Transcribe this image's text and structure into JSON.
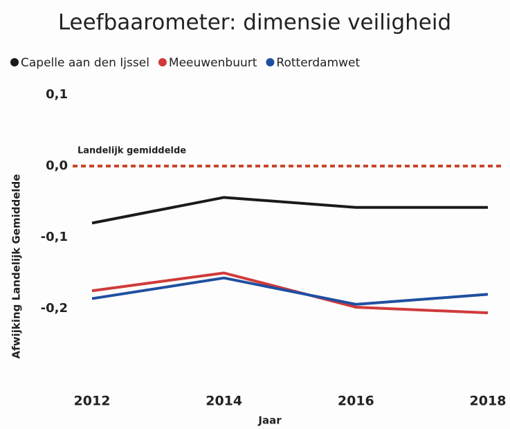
{
  "chart_data": {
    "type": "line",
    "title": "Leefbaarometer: dimensie veiligheid",
    "x_label": "Jaar",
    "y_label": "Afwijking Landelijk Gemiddelde",
    "x": [
      2012,
      2014,
      2016,
      2018
    ],
    "xlim": [
      2012,
      2018
    ],
    "xticks": [
      2012,
      2014,
      2016,
      2018
    ],
    "ylim": [
      -0.3,
      0.1
    ],
    "yticks": [
      {
        "value": 0.1,
        "label": "0,1"
      },
      {
        "value": 0,
        "label": "0,0"
      },
      {
        "value": -0.1,
        "label": "-0,1"
      },
      {
        "value": -0.2,
        "label": "-0,2"
      }
    ],
    "grid": false,
    "legend": "top-left",
    "reference_line": {
      "value": 0,
      "label": "Landelijk gemiddelde",
      "color": "#c8452c"
    },
    "series": [
      {
        "name": "Capelle aan den Ijssel",
        "color": "#1a1a1a",
        "values": [
          -0.08,
          -0.044,
          -0.058,
          -0.058
        ]
      },
      {
        "name": "Meeuwenbuurt",
        "color": "#d03a3a",
        "values": [
          -0.175,
          -0.15,
          -0.198,
          -0.206
        ]
      },
      {
        "name": "Rotterdamwet",
        "color": "#1f4fa0",
        "values": [
          -0.186,
          -0.157,
          -0.194,
          -0.18
        ]
      }
    ]
  }
}
